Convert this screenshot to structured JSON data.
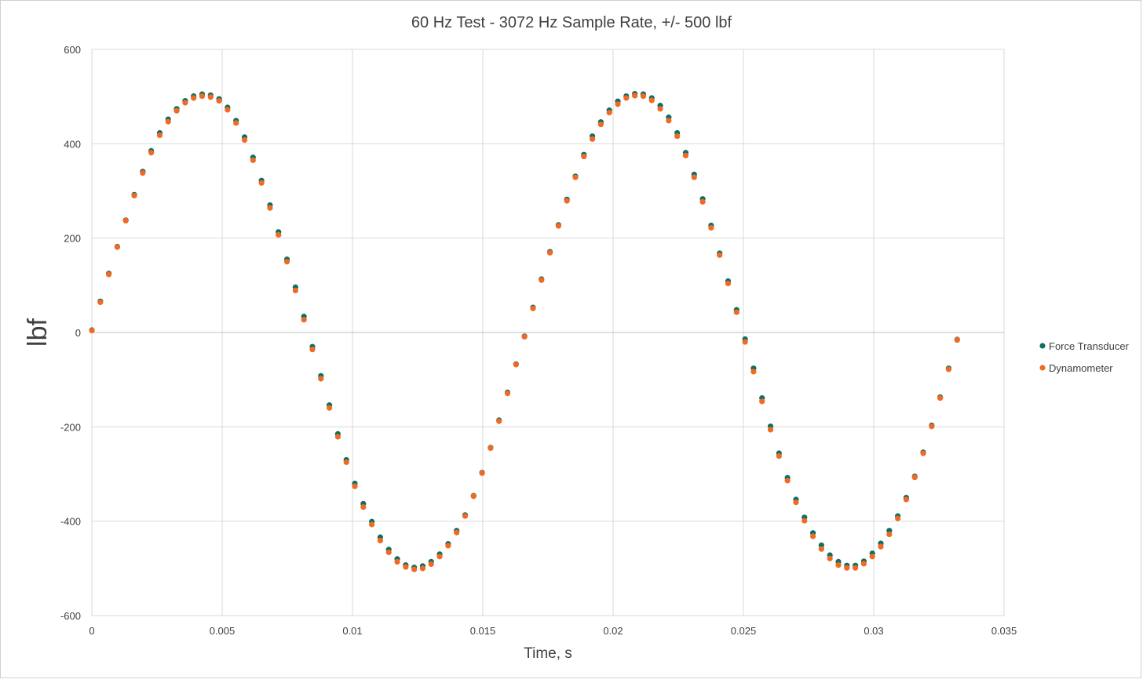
{
  "chart_data": {
    "type": "scatter",
    "title": "60 Hz Test - 3072 Hz Sample Rate, +/- 500 lbf",
    "xlabel": "Time, s",
    "ylabel": "lbf",
    "xlim": [
      0,
      0.035
    ],
    "ylim": [
      -600,
      600
    ],
    "x_ticks": [
      0,
      0.005,
      0.01,
      0.015,
      0.02,
      0.025,
      0.03,
      0.035
    ],
    "x_tick_labels": [
      "0",
      "0.005",
      "0.01",
      "0.015",
      "0.02",
      "0.025",
      "0.03",
      "0.035"
    ],
    "y_ticks": [
      -600,
      -400,
      -200,
      0,
      200,
      400,
      600
    ],
    "y_tick_labels": [
      "-600",
      "-400",
      "-200",
      "0",
      "200",
      "400",
      "600"
    ],
    "grid": true,
    "legend_position": "right",
    "sample_interval_s": 0.0003255,
    "series": [
      {
        "name": "Force Transducer",
        "color": "#0f6f63",
        "y": [
          5,
          66,
          125,
          182,
          238,
          292,
          341,
          385,
          423,
          452,
          474,
          491,
          501,
          505,
          503,
          495,
          477,
          449,
          414,
          371,
          322,
          270,
          213,
          155,
          96,
          34,
          -30,
          -92,
          -154,
          -215,
          -270,
          -320,
          -363,
          -401,
          -434,
          -460,
          -480,
          -493,
          -498,
          -495,
          -486,
          -470,
          -448,
          -420,
          -387,
          -346,
          -297,
          -244,
          -186,
          -127,
          -67,
          -8,
          53,
          113,
          171,
          228,
          282,
          331,
          377,
          416,
          446,
          471,
          490,
          501,
          506,
          505,
          497,
          481,
          456,
          423,
          381,
          335,
          283,
          227,
          168,
          109,
          48,
          -14,
          -76,
          -139,
          -199,
          -256,
          -308,
          -354,
          -392,
          -425,
          -451,
          -472,
          -486,
          -494,
          -494,
          -485,
          -468,
          -447,
          -420,
          -389,
          -350,
          -305,
          -254,
          -197,
          -137,
          -76,
          -15
        ]
      },
      {
        "name": "Dynamometer",
        "color": "#f06a23",
        "y": [
          4,
          64,
          123,
          181,
          237,
          290,
          338,
          381,
          418,
          447,
          470,
          487,
          497,
          501,
          499,
          491,
          472,
          444,
          408,
          365,
          317,
          264,
          207,
          150,
          89,
          27,
          -36,
          -98,
          -160,
          -221,
          -275,
          -326,
          -370,
          -407,
          -441,
          -466,
          -486,
          -497,
          -502,
          -500,
          -491,
          -475,
          -452,
          -424,
          -389,
          -347,
          -298,
          -245,
          -188,
          -129,
          -68,
          -9,
          51,
          111,
          169,
          226,
          279,
          329,
          373,
          410,
          441,
          466,
          484,
          497,
          502,
          501,
          492,
          474,
          449,
          416,
          375,
          329,
          277,
          222,
          164,
          104,
          43,
          -20,
          -83,
          -146,
          -206,
          -262,
          -314,
          -360,
          -399,
          -432,
          -459,
          -479,
          -493,
          -499,
          -499,
          -490,
          -475,
          -454,
          -428,
          -394,
          -354,
          -307,
          -256,
          -199,
          -139,
          -78,
          -16
        ]
      }
    ]
  }
}
